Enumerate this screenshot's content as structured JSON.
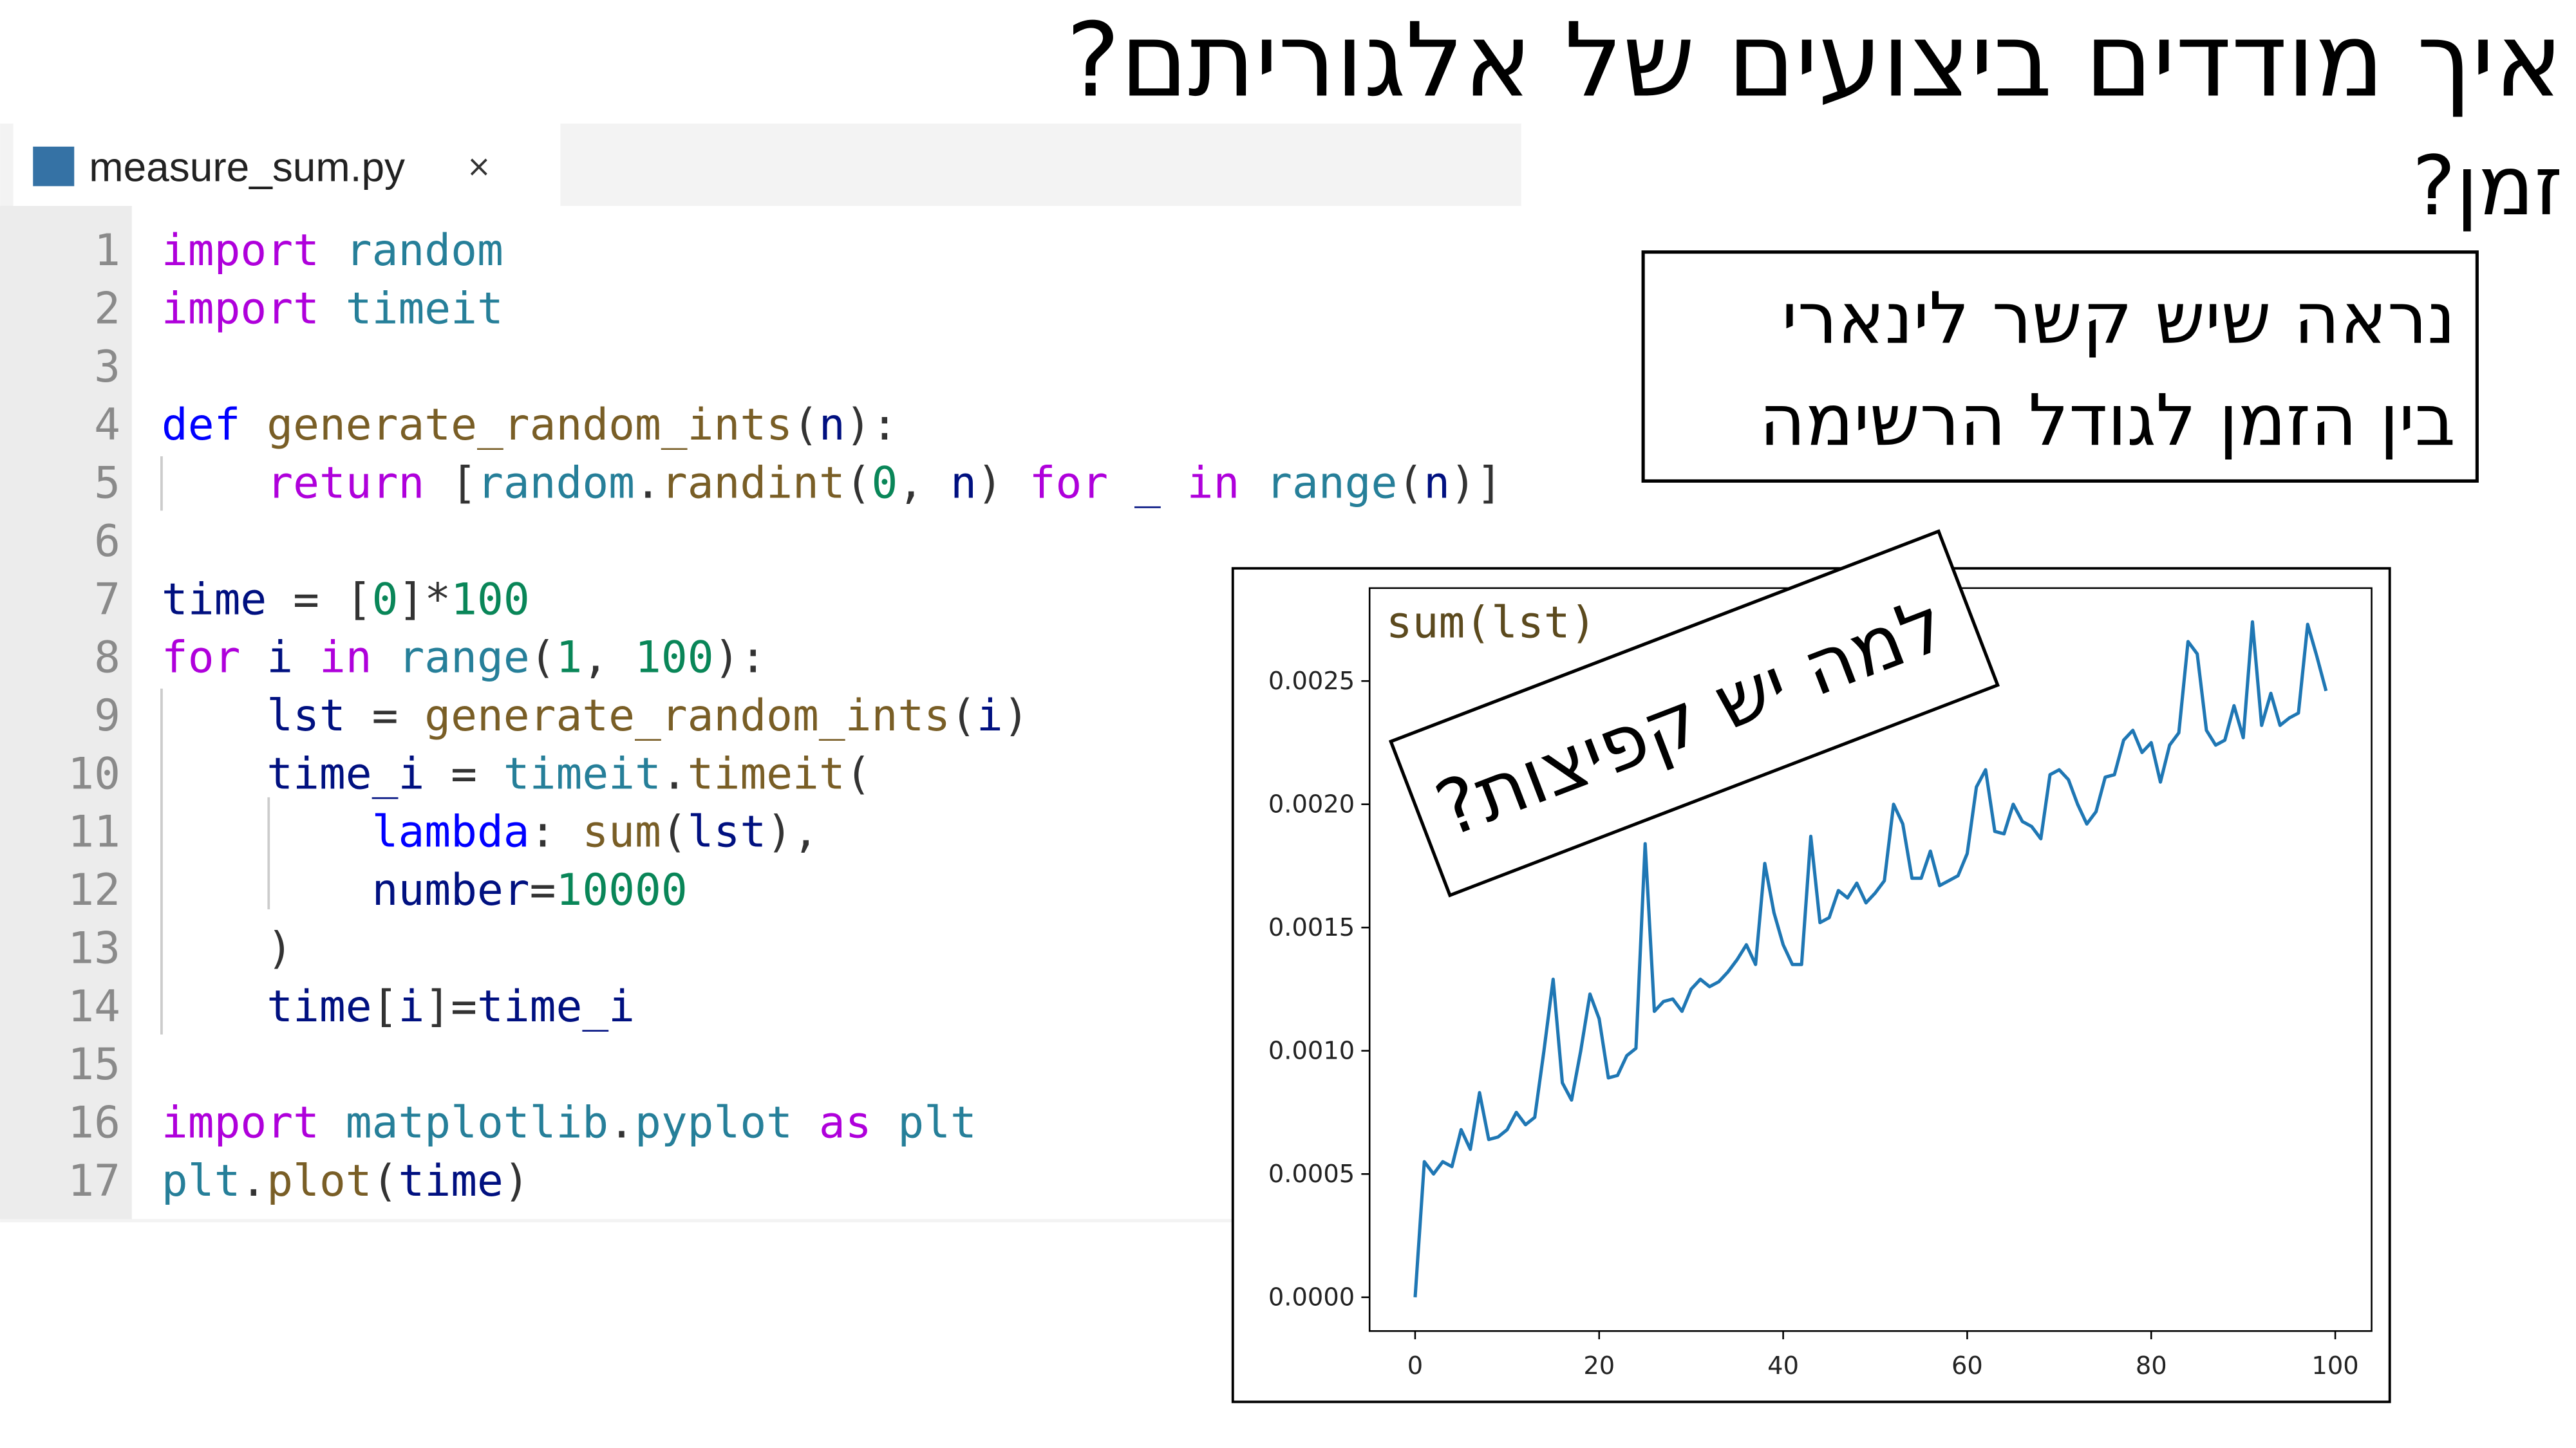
{
  "title": "איך מודדים ביצועים של אלגוריתם?",
  "subtitle": "זמן?",
  "note": [
    "נראה שיש קשר לינארי",
    "בין הזמן לגודל הרשימה"
  ],
  "editor": {
    "tab": "measure_sum.py",
    "close": "×",
    "line_numbers": [
      1,
      2,
      3,
      4,
      5,
      6,
      7,
      8,
      9,
      10,
      11,
      12,
      13,
      14,
      15,
      16,
      17
    ],
    "lines": [
      [
        [
          "import",
          "#af00db"
        ],
        [
          " random",
          "#267f99"
        ]
      ],
      [
        [
          "import",
          "#af00db"
        ],
        [
          " timeit",
          "#267f99"
        ]
      ],
      [],
      [
        [
          "def",
          "#0000ff"
        ],
        [
          " generate_random_ints",
          "#795e26"
        ],
        [
          "(",
          "#333333"
        ],
        [
          "n",
          "#001080"
        ],
        [
          "):",
          "#333333"
        ]
      ],
      [
        [
          "    return",
          "#af00db"
        ],
        [
          " [",
          "#333333"
        ],
        [
          "random",
          "#267f99"
        ],
        [
          ".",
          "#333333"
        ],
        [
          "randint",
          "#795e26"
        ],
        [
          "(",
          "#333333"
        ],
        [
          "0",
          "#098658"
        ],
        [
          ", ",
          "#333333"
        ],
        [
          "n",
          "#001080"
        ],
        [
          ") ",
          "#333333"
        ],
        [
          "for",
          "#af00db"
        ],
        [
          " _",
          "#001080"
        ],
        [
          " in",
          "#af00db"
        ],
        [
          " range",
          "#267f99"
        ],
        [
          "(",
          "#333333"
        ],
        [
          "n",
          "#001080"
        ],
        [
          ")]",
          "#333333"
        ]
      ],
      [],
      [
        [
          "time",
          "#001080"
        ],
        [
          " = [",
          "#333333"
        ],
        [
          "0",
          "#098658"
        ],
        [
          "]*",
          "#333333"
        ],
        [
          "100",
          "#098658"
        ]
      ],
      [
        [
          "for",
          "#af00db"
        ],
        [
          " i",
          "#001080"
        ],
        [
          " in",
          "#af00db"
        ],
        [
          " range",
          "#267f99"
        ],
        [
          "(",
          "#333333"
        ],
        [
          "1",
          "#098658"
        ],
        [
          ", ",
          "#333333"
        ],
        [
          "100",
          "#098658"
        ],
        [
          "):",
          "#333333"
        ]
      ],
      [
        [
          "    lst",
          "#001080"
        ],
        [
          " = ",
          "#333333"
        ],
        [
          "generate_random_ints",
          "#795e26"
        ],
        [
          "(",
          "#333333"
        ],
        [
          "i",
          "#001080"
        ],
        [
          ")",
          "#333333"
        ]
      ],
      [
        [
          "    time_i",
          "#001080"
        ],
        [
          " = ",
          "#333333"
        ],
        [
          "timeit",
          "#267f99"
        ],
        [
          ".",
          "#333333"
        ],
        [
          "timeit",
          "#795e26"
        ],
        [
          "(",
          "#333333"
        ]
      ],
      [
        [
          "        lambda",
          "#0000ff"
        ],
        [
          ": ",
          "#333333"
        ],
        [
          "sum",
          "#795e26"
        ],
        [
          "(",
          "#333333"
        ],
        [
          "lst",
          "#001080"
        ],
        [
          "),",
          "#333333"
        ]
      ],
      [
        [
          "        number",
          "#001080"
        ],
        [
          "=",
          "#333333"
        ],
        [
          "10000",
          "#098658"
        ]
      ],
      [
        [
          "    )",
          "#333333"
        ]
      ],
      [
        [
          "    time",
          "#001080"
        ],
        [
          "[",
          "#333333"
        ],
        [
          "i",
          "#001080"
        ],
        [
          "]=",
          "#333333"
        ],
        [
          "time_i",
          "#001080"
        ]
      ],
      [],
      [
        [
          "import",
          "#af00db"
        ],
        [
          " matplotlib",
          "#267f99"
        ],
        [
          ".",
          "#333333"
        ],
        [
          "pyplot",
          "#267f99"
        ],
        [
          " as",
          "#af00db"
        ],
        [
          " plt",
          "#267f99"
        ]
      ],
      [
        [
          "plt",
          "#267f99"
        ],
        [
          ".",
          "#333333"
        ],
        [
          "plot",
          "#795e26"
        ],
        [
          "(",
          "#333333"
        ],
        [
          "time",
          "#001080"
        ],
        [
          ")",
          "#333333"
        ]
      ]
    ]
  },
  "chart_data": {
    "type": "line",
    "title": "sum(lst)",
    "annotation": "למה יש קפיצות?",
    "x": [
      0,
      1,
      2,
      3,
      4,
      5,
      6,
      7,
      8,
      9,
      10,
      11,
      12,
      13,
      14,
      15,
      16,
      17,
      18,
      19,
      20,
      21,
      22,
      23,
      24,
      25,
      26,
      27,
      28,
      29,
      30,
      31,
      32,
      33,
      34,
      35,
      36,
      37,
      38,
      39,
      40,
      41,
      42,
      43,
      44,
      45,
      46,
      47,
      48,
      49,
      50,
      51,
      52,
      53,
      54,
      55,
      56,
      57,
      58,
      59,
      60,
      61,
      62,
      63,
      64,
      65,
      66,
      67,
      68,
      69,
      70,
      71,
      72,
      73,
      74,
      75,
      76,
      77,
      78,
      79,
      80,
      81,
      82,
      83,
      84,
      85,
      86,
      87,
      88,
      89,
      90,
      91,
      92,
      93,
      94,
      95,
      96,
      97,
      98,
      99
    ],
    "series": [
      {
        "color": "#1f77b4",
        "values": [
          0,
          0.00055,
          0.0005,
          0.00055,
          0.00053,
          0.00068,
          0.0006,
          0.00083,
          0.00064,
          0.00065,
          0.00068,
          0.00075,
          0.0007,
          0.00073,
          0.001,
          0.00129,
          0.00087,
          0.0008,
          0.001,
          0.00123,
          0.00113,
          0.00089,
          0.0009,
          0.00098,
          0.00101,
          0.00184,
          0.00116,
          0.0012,
          0.00121,
          0.00116,
          0.00125,
          0.00129,
          0.00126,
          0.00128,
          0.00132,
          0.00137,
          0.00143,
          0.00135,
          0.00176,
          0.00156,
          0.00143,
          0.00135,
          0.00135,
          0.00187,
          0.00152,
          0.00154,
          0.00165,
          0.00162,
          0.00168,
          0.0016,
          0.00164,
          0.00169,
          0.002,
          0.00192,
          0.0017,
          0.0017,
          0.00181,
          0.00167,
          0.00169,
          0.00171,
          0.0018,
          0.00207,
          0.00214,
          0.00189,
          0.00188,
          0.002,
          0.00193,
          0.00191,
          0.00186,
          0.00212,
          0.00214,
          0.0021,
          0.002,
          0.00192,
          0.00197,
          0.00211,
          0.00212,
          0.00226,
          0.0023,
          0.00221,
          0.00225,
          0.00209,
          0.00224,
          0.00229,
          0.00266,
          0.00261,
          0.0023,
          0.00224,
          0.00226,
          0.0024,
          0.00227,
          0.00274,
          0.00232,
          0.00245,
          0.00232,
          0.00235,
          0.00237,
          0.00273,
          0.0026,
          0.00246
        ]
      }
    ],
    "xlim": [
      -4.95,
      103.95
    ],
    "ylim": [
      -0.000137,
      0.002877
    ],
    "xticks": [
      0,
      20,
      40,
      60,
      80,
      100
    ],
    "yticks": [
      {
        "value": 0,
        "label": "0.0000"
      },
      {
        "value": 0.0005,
        "label": "0.0005"
      },
      {
        "value": 0.001,
        "label": "0.0010"
      },
      {
        "value": 0.0015,
        "label": "0.0015"
      },
      {
        "value": 0.002,
        "label": "0.0020"
      },
      {
        "value": 0.0025,
        "label": "0.0025"
      }
    ],
    "grid": false
  }
}
